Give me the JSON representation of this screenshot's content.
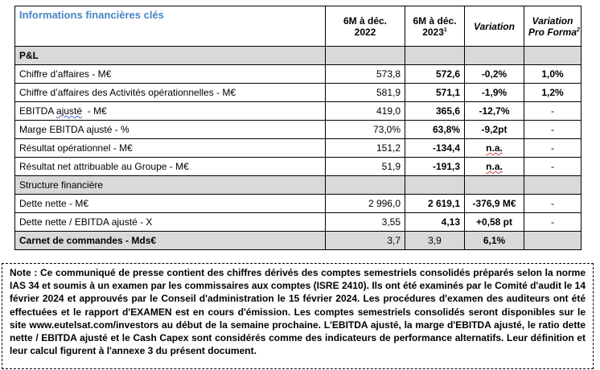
{
  "table": {
    "title": "Informations financières clés",
    "columns": {
      "col1_line1": "6M à déc.",
      "col1_line2": "2022",
      "col2_line1": "6M à déc.",
      "col2_line2": "2023",
      "col2_sup": "1",
      "col3": "Variation",
      "col4_line1": "Variation",
      "col4_line2": "Pro Forma",
      "col4_sup": "2"
    },
    "section_pl": "P&L",
    "rows_pl": [
      {
        "label": "Chiffre d’affaires - M€",
        "v2022": "573,8",
        "v2023": "572,6",
        "variation": "-0,2%",
        "proforma": "1,0%"
      },
      {
        "label": "Chiffre d’affaires des Activités opérationnelles - M€",
        "v2022": "581,9",
        "v2023": "571,1",
        "variation": "-1,9%",
        "proforma": "1,2%"
      },
      {
        "label_a": "EBITDA ",
        "label_b": "ajusté",
        "label_c": "  - M€",
        "v2022": "419,0",
        "v2023": "365,6",
        "variation": "-12,7%",
        "proforma": "-"
      },
      {
        "label": "Marge EBITDA ajusté - %",
        "v2022": "73,0%",
        "v2023": "63,8%",
        "variation": "-9,2pt",
        "proforma": "-"
      },
      {
        "label": "Résultat opérationnel - M€",
        "v2022": "151,2",
        "v2023": "-134,4",
        "variation": "n.a.",
        "proforma": "-"
      },
      {
        "label": "Résultat net attribuable au Groupe - M€",
        "v2022": "51,9",
        "v2023": "-191,3",
        "variation": "n.a.",
        "proforma": "-"
      }
    ],
    "section_fin": "Structure financière",
    "rows_fin": [
      {
        "label": "Dette nette - M€",
        "v2022": "2 996,0",
        "v2023": "2 619,1",
        "variation": "-376,9 M€",
        "proforma": "-"
      },
      {
        "label": "Dette nette / EBITDA ajusté - X",
        "v2022": "3,55",
        "v2023": "4,13",
        "variation": "+0,58 pt",
        "proforma": "-"
      }
    ],
    "row_backlog": {
      "label": "Carnet de commandes - Mds€",
      "v2022": "3,7",
      "v2023": "3,9",
      "variation": "6,1%"
    }
  },
  "note": "Note : Ce communiqué de presse contient des chiffres dérivés des comptes semestriels consolidés préparés selon la norme IAS 34 et soumis à un examen par les commissaires aux comptes (ISRE 2410). Ils ont été examinés par le Comité d'audit le 14 février 2024 et approuvés par le Conseil d'administration le 15 février 2024. Les procédures d'examen des auditeurs ont été effectuées et le rapport d'EXAMEN est en cours d'émission. Les comptes semestriels consolidés seront disponibles sur le site www.eutelsat.com/investors au début de la semaine prochaine. L'EBITDA ajusté, la marge d'EBITDA ajusté, le ratio dette nette / EBITDA ajusté et le Cash Capex sont considérés comme des indicateurs de performance alternatifs. Leur définition et leur calcul figurent à l'annexe 3 du présent document."
}
